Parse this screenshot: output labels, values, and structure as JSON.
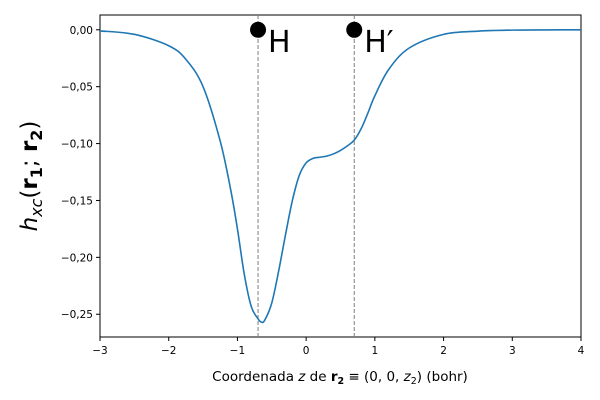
{
  "chart_data": {
    "type": "line",
    "xlabel": "Coordenada z de r₂ ≡ (0, 0, z₂) (bohr)",
    "ylabel": "hxc(r₁; r₂)",
    "xlim": [
      -3,
      4
    ],
    "ylim": [
      -0.27,
      0.013
    ],
    "grid": false,
    "x_ticks": [
      -3,
      -2,
      -1,
      0,
      1,
      2,
      3,
      4
    ],
    "x_tick_labels": [
      "−3",
      "−2",
      "−1",
      "0",
      "1",
      "2",
      "3",
      "4"
    ],
    "y_ticks": [
      0.0,
      -0.05,
      -0.1,
      -0.15,
      -0.2,
      -0.25
    ],
    "y_tick_labels": [
      "0,00",
      "−0,05",
      "−0,10",
      "−0,15",
      "−0,20",
      "−0,25"
    ],
    "series": [
      {
        "color": "#1f77b4",
        "x": [
          -3.0,
          -2.5,
          -2.0,
          -1.75,
          -1.5,
          -1.25,
          -1.1,
          -1.0,
          -0.9,
          -0.8,
          -0.7,
          -0.65,
          -0.6,
          -0.5,
          -0.4,
          -0.3,
          -0.2,
          -0.1,
          0.0,
          0.1,
          0.2,
          0.3,
          0.4,
          0.5,
          0.6,
          0.7,
          0.8,
          0.9,
          1.0,
          1.2,
          1.5,
          2.0,
          2.5,
          3.0,
          3.5,
          4.0
        ],
        "y": [
          -0.001,
          -0.004,
          -0.014,
          -0.026,
          -0.05,
          -0.098,
          -0.14,
          -0.175,
          -0.215,
          -0.243,
          -0.254,
          -0.257,
          -0.255,
          -0.24,
          -0.212,
          -0.18,
          -0.15,
          -0.128,
          -0.117,
          -0.113,
          -0.112,
          -0.111,
          -0.109,
          -0.106,
          -0.102,
          -0.097,
          -0.087,
          -0.073,
          -0.058,
          -0.035,
          -0.016,
          -0.004,
          -0.0012,
          -0.0003,
          -0.0001,
          0.0
        ]
      }
    ],
    "markers": [
      {
        "x": -0.7,
        "y": 0.0,
        "label": "H",
        "vline": true
      },
      {
        "x": 0.7,
        "y": 0.0,
        "label": "H′",
        "vline": true
      }
    ],
    "vline_color": "#7f7f7f",
    "marker_color": "#000000"
  }
}
